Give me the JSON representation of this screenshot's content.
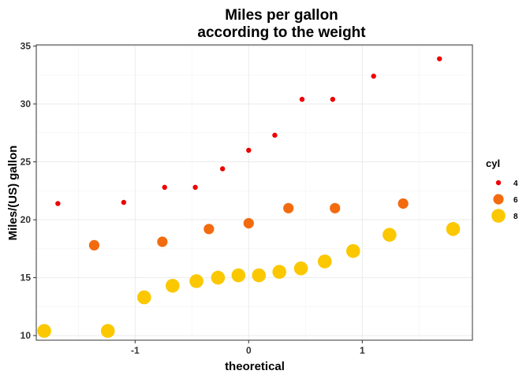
{
  "chart_data": {
    "type": "scatter",
    "title_lines": [
      "Miles per gallon",
      "according to the weight"
    ],
    "xlabel": "theoretical",
    "ylabel": "Miles/(US) gallon",
    "xlim": [
      -1.87,
      1.97
    ],
    "ylim": [
      9.6,
      35.1
    ],
    "x_ticks": [
      -1,
      0,
      1
    ],
    "x_tick_labels": [
      "-1",
      "0",
      "1"
    ],
    "y_ticks": [
      10,
      15,
      20,
      25,
      30,
      35
    ],
    "y_tick_labels": [
      "10",
      "15",
      "20",
      "25",
      "30",
      "35"
    ],
    "grid": true,
    "legend": {
      "title": "cyl",
      "position": "right"
    },
    "series": [
      {
        "name": "4",
        "color": "#ee0000",
        "size": "small",
        "points": [
          {
            "x": -1.68,
            "y": 21.4
          },
          {
            "x": -1.1,
            "y": 21.5
          },
          {
            "x": -0.74,
            "y": 22.8
          },
          {
            "x": -0.47,
            "y": 22.8
          },
          {
            "x": -0.23,
            "y": 24.4
          },
          {
            "x": 0.0,
            "y": 26.0
          },
          {
            "x": 0.23,
            "y": 27.3
          },
          {
            "x": 0.47,
            "y": 30.4
          },
          {
            "x": 0.74,
            "y": 30.4
          },
          {
            "x": 1.1,
            "y": 32.4
          },
          {
            "x": 1.68,
            "y": 33.9
          }
        ]
      },
      {
        "name": "6",
        "color": "#f26b0f",
        "size": "medium",
        "points": [
          {
            "x": -1.36,
            "y": 17.8
          },
          {
            "x": -0.76,
            "y": 18.1
          },
          {
            "x": -0.35,
            "y": 19.2
          },
          {
            "x": 0.0,
            "y": 19.7
          },
          {
            "x": 0.35,
            "y": 21.0
          },
          {
            "x": 0.76,
            "y": 21.0
          },
          {
            "x": 1.36,
            "y": 21.4
          }
        ]
      },
      {
        "name": "8",
        "color": "#fbc800",
        "size": "large",
        "points": [
          {
            "x": -1.8,
            "y": 10.4
          },
          {
            "x": -1.24,
            "y": 10.4
          },
          {
            "x": -0.92,
            "y": 13.3
          },
          {
            "x": -0.67,
            "y": 14.3
          },
          {
            "x": -0.46,
            "y": 14.7
          },
          {
            "x": -0.27,
            "y": 15.0
          },
          {
            "x": -0.09,
            "y": 15.2
          },
          {
            "x": 0.09,
            "y": 15.2
          },
          {
            "x": 0.27,
            "y": 15.5
          },
          {
            "x": 0.46,
            "y": 15.8
          },
          {
            "x": 0.67,
            "y": 16.4
          },
          {
            "x": 0.92,
            "y": 17.3
          },
          {
            "x": 1.24,
            "y": 18.7
          },
          {
            "x": 1.8,
            "y": 19.2
          }
        ]
      }
    ]
  }
}
